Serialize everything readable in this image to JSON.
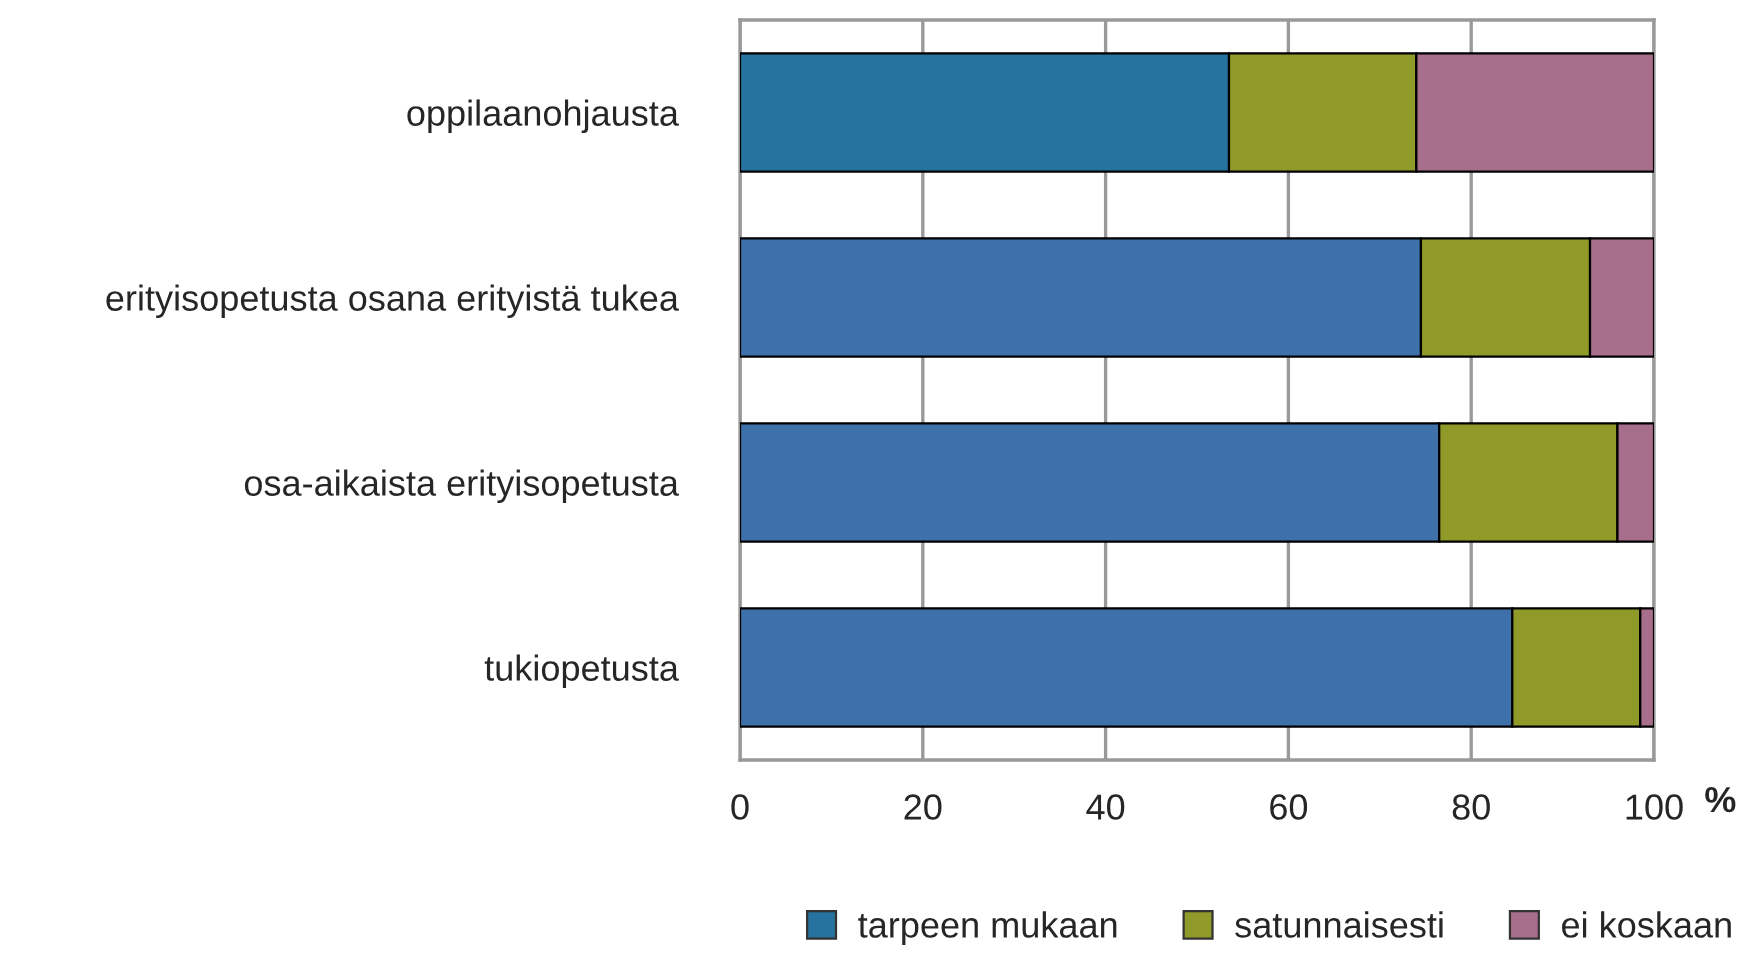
{
  "chart_data": {
    "type": "bar",
    "orientation": "horizontal",
    "stacked": true,
    "xlabel": "%",
    "categories": [
      "oppilaanohjausta",
      "erityisopetusta osana erityistä tukea",
      "osa-aikaista erityisopetusta",
      "tukiopetusta"
    ],
    "series": [
      {
        "name": "tarpeen mukaan",
        "color": "#25739e",
        "colors": [
          "#25739e",
          "#3e71aa",
          "#3e71aa",
          "#3e71aa"
        ],
        "values": [
          53.5,
          74.5,
          76.5,
          84.5
        ]
      },
      {
        "name": "satunnaisesti",
        "color": "#909a28",
        "values": [
          20.5,
          18.5,
          19.5,
          14
        ]
      },
      {
        "name": "ei koskaan",
        "color": "#a86f8c",
        "values": [
          26,
          7,
          4,
          1.5
        ]
      }
    ],
    "xlim": [
      0,
      100
    ],
    "xticks": [
      0,
      20,
      40,
      60,
      80,
      100
    ],
    "grid": "x",
    "legend": "bottom"
  }
}
